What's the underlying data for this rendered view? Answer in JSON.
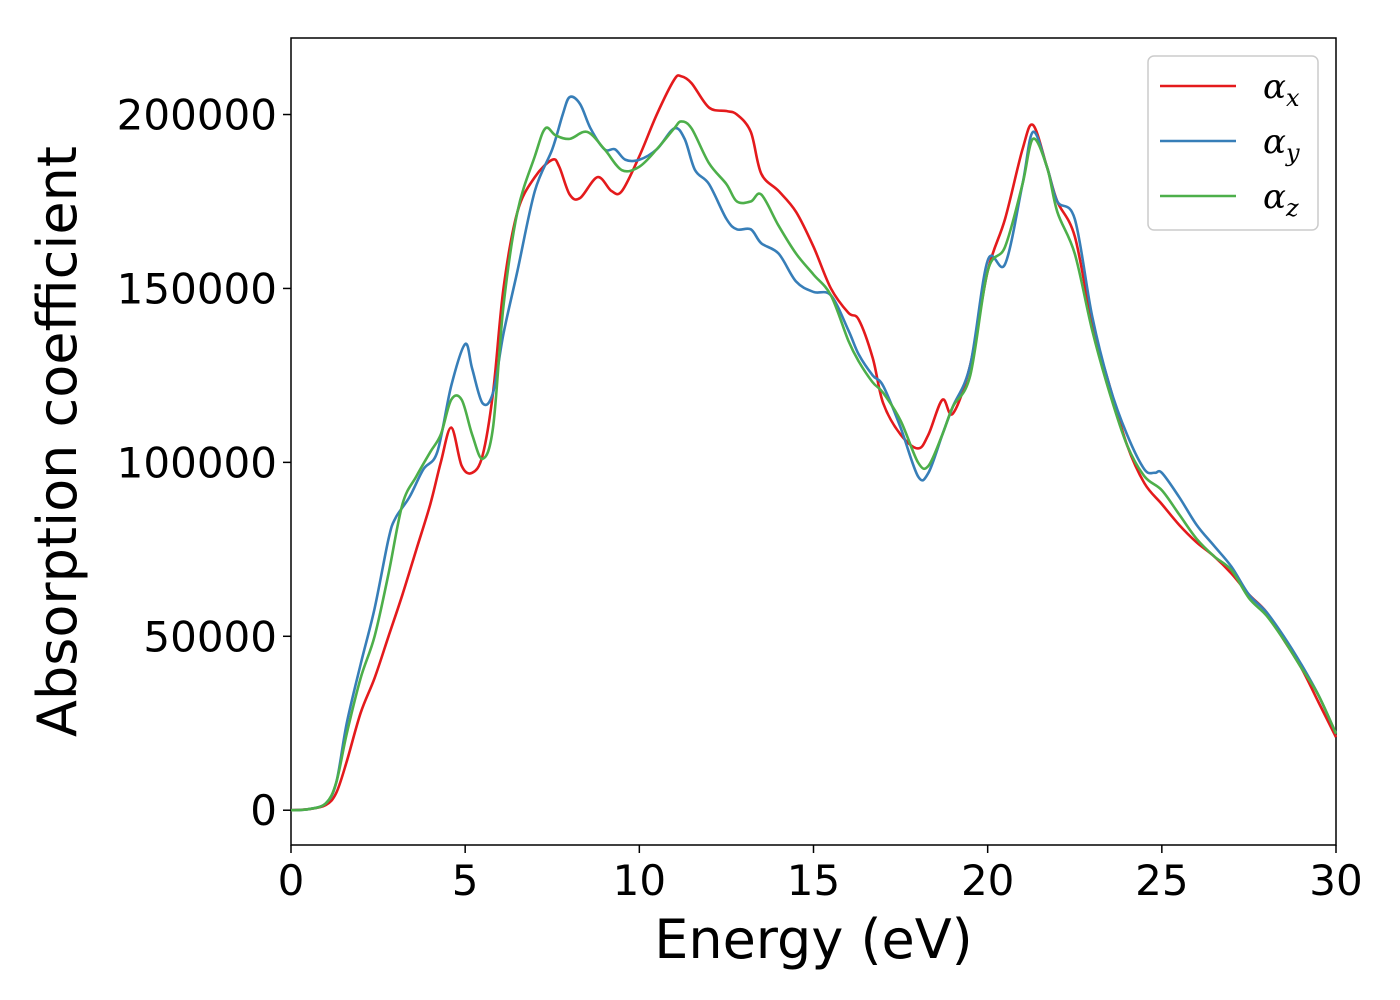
{
  "chart_data": {
    "type": "line",
    "title": "",
    "xlabel": "Energy (eV)",
    "ylabel": "Absorption coefficient",
    "xlim": [
      0,
      30
    ],
    "ylim": [
      -10000,
      222000
    ],
    "xticks": [
      0,
      5,
      10,
      15,
      20,
      25,
      30
    ],
    "xtick_labels": [
      "0",
      "5",
      "10",
      "15",
      "20",
      "25",
      "30"
    ],
    "yticks": [
      0,
      50000,
      100000,
      150000,
      200000
    ],
    "ytick_labels": [
      "0",
      "50000",
      "100000",
      "150000",
      "200000"
    ],
    "grid": false,
    "legend_position": "top-right",
    "series": [
      {
        "name": "α",
        "subscript": "x",
        "color": "#e41a1c",
        "x": [
          0,
          0.5,
          1.0,
          1.3,
          1.6,
          2.0,
          2.4,
          2.8,
          3.2,
          3.6,
          4.0,
          4.3,
          4.6,
          4.9,
          5.2,
          5.5,
          5.8,
          6.1,
          6.5,
          7.0,
          7.5,
          7.7,
          8.0,
          8.3,
          8.8,
          9.2,
          9.5,
          10.0,
          10.5,
          11.0,
          11.2,
          11.5,
          12.0,
          12.5,
          12.8,
          13.2,
          13.5,
          14.0,
          14.5,
          15.0,
          15.5,
          16.0,
          16.3,
          16.7,
          17.0,
          17.5,
          18.0,
          18.3,
          18.7,
          19.0,
          19.5,
          20.0,
          20.5,
          21.0,
          21.3,
          21.7,
          22.0,
          22.5,
          23.0,
          23.5,
          24.0,
          24.5,
          25.0,
          25.5,
          26.0,
          26.5,
          27.0,
          27.5,
          28.0,
          28.5,
          29.0,
          29.5,
          30.0
        ],
        "values": [
          0,
          300,
          1500,
          5000,
          14000,
          28000,
          38000,
          50000,
          62000,
          75000,
          88000,
          100000,
          110000,
          99000,
          97000,
          102000,
          120000,
          150000,
          172000,
          182000,
          187000,
          185000,
          177000,
          176000,
          182000,
          178000,
          178000,
          188000,
          200000,
          210000,
          211000,
          209000,
          202000,
          201000,
          200000,
          195000,
          183000,
          178000,
          172000,
          162000,
          150000,
          143000,
          141000,
          130000,
          117000,
          108000,
          104000,
          108000,
          118000,
          114000,
          128000,
          155000,
          170000,
          190000,
          197000,
          185000,
          175000,
          165000,
          140000,
          122000,
          105000,
          94000,
          88000,
          82000,
          77000,
          73000,
          68000,
          62000,
          57000,
          49000,
          41000,
          31000,
          21000
        ]
      },
      {
        "name": "α",
        "subscript": "y",
        "color": "#377eb8",
        "x": [
          0,
          0.5,
          1.0,
          1.3,
          1.6,
          2.0,
          2.4,
          2.8,
          3.0,
          3.4,
          3.8,
          4.2,
          4.6,
          5.0,
          5.2,
          5.5,
          5.8,
          6.1,
          6.5,
          7.0,
          7.5,
          7.8,
          8.0,
          8.3,
          8.6,
          9.0,
          9.3,
          9.6,
          10.0,
          10.5,
          11.0,
          11.3,
          11.6,
          12.0,
          12.5,
          12.8,
          13.2,
          13.5,
          14.0,
          14.5,
          15.0,
          15.5,
          16.0,
          16.3,
          16.7,
          17.0,
          17.5,
          18.0,
          18.3,
          18.7,
          19.0,
          19.5,
          20.0,
          20.5,
          21.0,
          21.3,
          21.7,
          22.0,
          22.5,
          23.0,
          23.5,
          24.0,
          24.5,
          24.8,
          25.0,
          25.5,
          26.0,
          26.5,
          27.0,
          27.5,
          28.0,
          28.5,
          29.0,
          29.5,
          30.0
        ],
        "values": [
          0,
          300,
          2000,
          8000,
          25000,
          42000,
          58000,
          78000,
          84000,
          90000,
          98000,
          103000,
          122000,
          134000,
          127000,
          117000,
          120000,
          137000,
          155000,
          178000,
          190000,
          200000,
          205000,
          203000,
          196000,
          190000,
          190000,
          187000,
          187000,
          190000,
          196000,
          193000,
          184000,
          180000,
          170000,
          167000,
          167000,
          163000,
          160000,
          152000,
          149000,
          148000,
          138000,
          131000,
          125000,
          122000,
          110000,
          96000,
          97000,
          108000,
          116000,
          128000,
          158000,
          157000,
          180000,
          195000,
          185000,
          175000,
          170000,
          142000,
          122000,
          108000,
          98000,
          97000,
          97000,
          90000,
          82000,
          76000,
          70000,
          62000,
          57000,
          50000,
          42000,
          33000,
          22000
        ]
      },
      {
        "name": "α",
        "subscript": "z",
        "color": "#4daf4a",
        "x": [
          0,
          0.5,
          1.0,
          1.3,
          1.6,
          2.0,
          2.4,
          2.8,
          3.2,
          3.6,
          4.0,
          4.3,
          4.6,
          4.9,
          5.2,
          5.5,
          5.8,
          6.1,
          6.5,
          7.0,
          7.3,
          7.6,
          8.0,
          8.5,
          9.0,
          9.5,
          10.0,
          10.5,
          11.0,
          11.2,
          11.5,
          12.0,
          12.5,
          12.8,
          13.2,
          13.5,
          14.0,
          14.5,
          15.0,
          15.5,
          16.0,
          16.3,
          16.7,
          17.0,
          17.5,
          18.0,
          18.3,
          18.7,
          19.0,
          19.5,
          20.0,
          20.5,
          21.0,
          21.3,
          21.7,
          22.0,
          22.5,
          23.0,
          23.5,
          24.0,
          24.5,
          25.0,
          25.5,
          26.0,
          26.5,
          27.0,
          27.5,
          28.0,
          28.5,
          29.0,
          29.5,
          30.0
        ],
        "values": [
          0,
          300,
          2000,
          8000,
          22000,
          38000,
          50000,
          68000,
          88000,
          96000,
          103000,
          108000,
          118000,
          118000,
          108000,
          101000,
          110000,
          145000,
          172000,
          188000,
          196000,
          194000,
          193000,
          195000,
          190000,
          184000,
          185000,
          190000,
          196000,
          198000,
          196000,
          186000,
          180000,
          175000,
          175000,
          177000,
          168000,
          160000,
          154000,
          148000,
          135000,
          129000,
          123000,
          120000,
          112000,
          100000,
          99000,
          108000,
          116000,
          125000,
          155000,
          162000,
          180000,
          193000,
          185000,
          172000,
          160000,
          138000,
          120000,
          105000,
          96000,
          92000,
          85000,
          78000,
          73000,
          69000,
          61000,
          56000,
          49000,
          41000,
          33000,
          22000
        ]
      }
    ]
  }
}
